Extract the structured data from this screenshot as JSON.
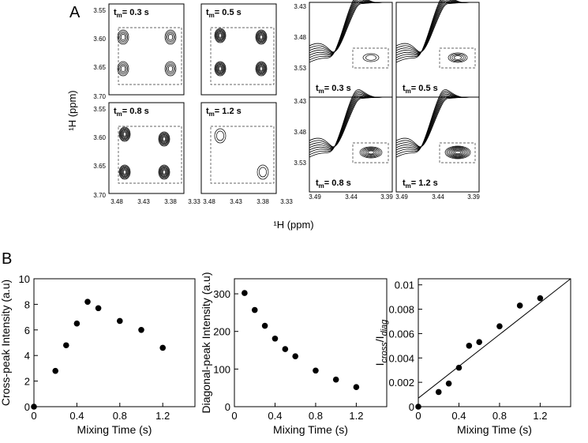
{
  "panel_labels": [
    "A",
    "B"
  ],
  "panel_a": {
    "axis_label": "¹H (ppm)",
    "tm_symbol": "t",
    "tm_subscript": "m",
    "tm_values": [
      "= 0.3 s",
      "= 0.5 s",
      "= 0.8 s",
      "= 1.2 s"
    ],
    "left_yticks": [
      "3.55",
      "3.60",
      "3.65",
      "3.70"
    ],
    "left_xticks": [
      "3.48",
      "3.43",
      "3.38",
      "3.33"
    ],
    "right_yticks": [
      "3.43",
      "3.48",
      "3.53"
    ],
    "right_xticks": [
      "3.49",
      "3.44",
      "3.39"
    ]
  },
  "chart_data": [
    {
      "type": "scatter",
      "ylabel": "Cross-peak Intensity (a.u)",
      "xlabel": "Mixing Time (s)",
      "x": [
        0,
        0.2,
        0.3,
        0.4,
        0.5,
        0.6,
        0.8,
        1.0,
        1.2
      ],
      "values": [
        0,
        2.8,
        4.8,
        6.5,
        8.2,
        7.7,
        6.7,
        6.0,
        4.6
      ],
      "color": "#000000",
      "xlim": [
        0,
        1.5
      ],
      "xticks": [
        0,
        0.4,
        0.8,
        1.2
      ],
      "ylim": [
        0,
        10
      ],
      "yticks": [
        0,
        2,
        4,
        6,
        8,
        10
      ]
    },
    {
      "type": "scatter",
      "ylabel": "Diagonal-peak Intensity (a.u)",
      "xlabel": "Mixing Time (s)",
      "x": [
        0.1,
        0.2,
        0.3,
        0.4,
        0.5,
        0.6,
        0.8,
        1.0,
        1.2
      ],
      "values": [
        302,
        257,
        215,
        181,
        153,
        134,
        96,
        72,
        52
      ],
      "color": "#000000",
      "xlim": [
        0,
        1.5
      ],
      "xticks": [
        0,
        0.4,
        0.8,
        1.2
      ],
      "ylim": [
        0,
        340
      ],
      "yticks": [
        0,
        100,
        200,
        300
      ]
    },
    {
      "type": "scatter",
      "ylabel_parts": [
        "I",
        "cross",
        "/I",
        "diag"
      ],
      "xlabel": "Mixing Time (s)",
      "x": [
        0,
        0.2,
        0.3,
        0.4,
        0.5,
        0.6,
        0.8,
        1.0,
        1.2
      ],
      "values": [
        0,
        0.0012,
        0.0019,
        0.0032,
        0.005,
        0.0053,
        0.0066,
        0.0083,
        0.0089
      ],
      "color": "#000000",
      "fit": {
        "x": [
          0,
          1.5
        ],
        "y": [
          0.0007,
          0.0105
        ]
      },
      "xlim": [
        0,
        1.5
      ],
      "xticks": [
        0,
        0.4,
        0.8,
        1.2
      ],
      "ylim": [
        0,
        0.0105
      ],
      "yticks": [
        0,
        0.002,
        0.004,
        0.006,
        0.008,
        0.01
      ]
    }
  ]
}
